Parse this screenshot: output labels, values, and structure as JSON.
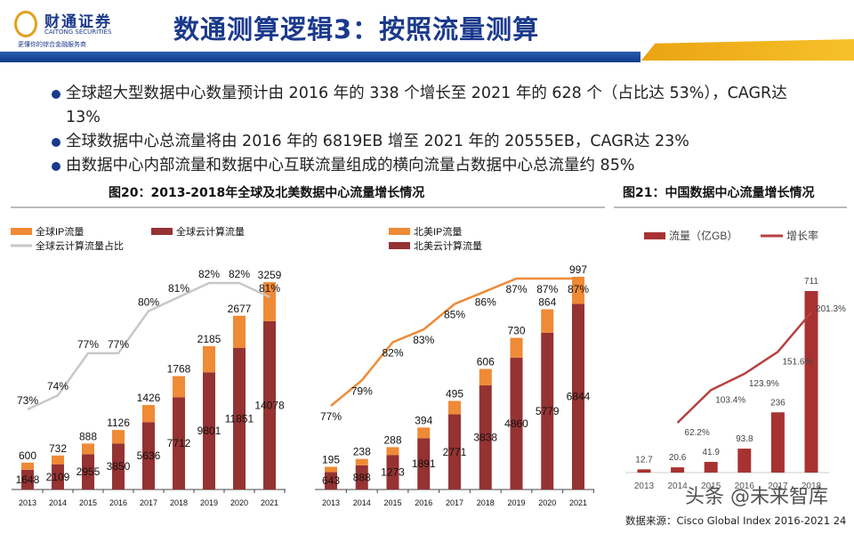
{
  "header": {
    "logo_cn": "财通证券",
    "logo_en": "CAITONG SECURITIES",
    "logo_sub": "更懂你的综合金融服务商",
    "title": "数通测算逻辑3：按照流量测算"
  },
  "bullets": [
    "全球超大型数据中心数量预计由 2016 年的 338 个增长至 2021 年的 628 个（占比达 53%），CAGR达 13%",
    "全球数据中心总流量将由 2016 年的 6819EB 增至 2021 年的 20555EB，CAGR达 23%",
    "由数据中心内部流量和数据中心互联流量组成的横向流量占数据中心总流量约 85%"
  ],
  "captions": {
    "fig20": "图20：2013-2018年全球及北美数据中心流量增长情况",
    "fig21": "图21：中国数据中心流量增长情况"
  },
  "colors": {
    "ip": "#ef8a36",
    "cloud": "#953232",
    "share_global": "#c8c8c8",
    "share_na": "#ef8a36",
    "china_bar": "#a83232",
    "china_line": "#b84040",
    "brand": "#1b3a8c"
  },
  "chart_data": [
    {
      "type": "bar",
      "stacked": true,
      "categories": [
        "2013",
        "2014",
        "2015",
        "2016",
        "2017",
        "2018",
        "2019",
        "2020",
        "2021"
      ],
      "legend": [
        "全球IP流量",
        "全球云计算流量",
        "全球云计算流量占比"
      ],
      "series": [
        {
          "name": "全球云计算流量",
          "values": [
            1648,
            2109,
            2955,
            3850,
            5636,
            7712,
            9801,
            11851,
            14078
          ]
        },
        {
          "name": "全球IP流量",
          "values": [
            600,
            732,
            888,
            1126,
            1426,
            1768,
            2185,
            2677,
            3259
          ]
        },
        {
          "name": "全球云计算流量占比",
          "type": "line",
          "values": [
            73,
            74,
            77,
            77,
            80,
            81,
            82,
            82,
            81
          ],
          "unit": "%"
        }
      ]
    },
    {
      "type": "bar",
      "stacked": true,
      "categories": [
        "2013",
        "2014",
        "2015",
        "2016",
        "2017",
        "2018",
        "2019",
        "2020",
        "2021"
      ],
      "legend": [
        "北美IP流量",
        "北美云计算流量"
      ],
      "series": [
        {
          "name": "北美云计算流量",
          "values": [
            643,
            888,
            1273,
            1891,
            2771,
            3838,
            4860,
            5779,
            6844
          ]
        },
        {
          "name": "北美IP流量",
          "values": [
            195,
            238,
            288,
            394,
            495,
            606,
            730,
            864,
            997
          ]
        },
        {
          "type": "line",
          "values": [
            77,
            79,
            82,
            83,
            85,
            86,
            87,
            87,
            87
          ],
          "unit": "%"
        }
      ]
    },
    {
      "type": "bar",
      "categories": [
        "2013",
        "2014",
        "2015",
        "2016",
        "2017",
        "2018"
      ],
      "legend": [
        "流量（亿GB）",
        "增长率"
      ],
      "series": [
        {
          "name": "流量（亿GB）",
          "values": [
            12.7,
            20.6,
            41.9,
            93.8,
            236,
            711
          ]
        },
        {
          "name": "增长率",
          "type": "line",
          "values": [
            null,
            62.2,
            103.4,
            123.9,
            151.6,
            201.3
          ],
          "unit": "%"
        }
      ]
    }
  ],
  "footer": {
    "source": "数据来源：Cisco Global Index 2016-2021 24",
    "watermark": "头条 @未来智库"
  }
}
